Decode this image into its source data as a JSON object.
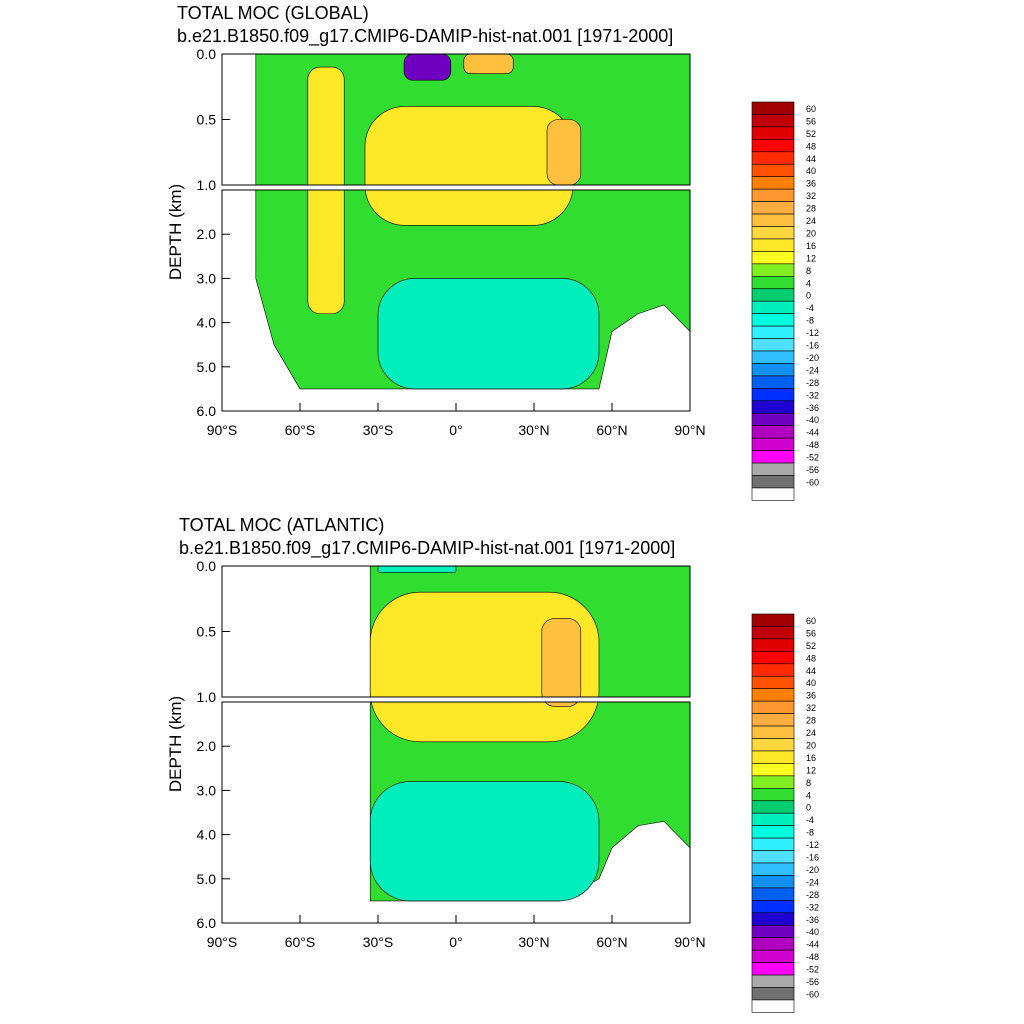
{
  "panels": [
    {
      "title": "TOTAL MOC (GLOBAL)",
      "subtitle": "b.e21.B1850.f09_g17.CMIP6-DAMIP-hist-nat.001 [1971-2000]"
    },
    {
      "title": "TOTAL MOC (ATLANTIC)",
      "subtitle": "b.e21.B1850.f09_g17.CMIP6-DAMIP-hist-nat.001 [1971-2000]"
    }
  ],
  "chart_data": [
    {
      "type": "heatmap",
      "title": "TOTAL MOC (GLOBAL)",
      "subtitle": "b.e21.B1850.f09_g17.CMIP6-DAMIP-hist-nat.001 [1971-2000]",
      "xlabel": "",
      "ylabel": "DEPTH (km)",
      "xlim": [
        -90,
        90
      ],
      "ylim_upper": [
        0.0,
        1.0
      ],
      "ylim_lower": [
        1.0,
        6.0
      ],
      "x_ticks": [
        "90°S",
        "60°S",
        "30°S",
        "0°",
        "30°N",
        "60°N",
        "90°N"
      ],
      "y_ticks_upper": [
        "0.0",
        "0.5",
        "1.0"
      ],
      "y_ticks_lower": [
        "2.0",
        "3.0",
        "4.0",
        "5.0",
        "6.0"
      ],
      "features": [
        {
          "lat": [
            -57,
            -43
          ],
          "depth": [
            0.1,
            3.8
          ],
          "value": 16
        },
        {
          "lat": [
            -20,
            -2
          ],
          "depth": [
            0.0,
            0.2
          ],
          "value": -40
        },
        {
          "lat": [
            3,
            22
          ],
          "depth": [
            0.0,
            0.15
          ],
          "value": 24
        },
        {
          "lat": [
            -35,
            45
          ],
          "depth": [
            0.4,
            1.8
          ],
          "value": 16
        },
        {
          "lat": [
            35,
            48
          ],
          "depth": [
            0.5,
            1.0
          ],
          "value": 24
        },
        {
          "lat": [
            -30,
            55
          ],
          "depth": [
            3.0,
            5.5
          ],
          "value": -4
        }
      ],
      "legend": "right"
    },
    {
      "type": "heatmap",
      "title": "TOTAL MOC (ATLANTIC)",
      "subtitle": "b.e21.B1850.f09_g17.CMIP6-DAMIP-hist-nat.001 [1971-2000]",
      "xlabel": "",
      "ylabel": "DEPTH (km)",
      "xlim": [
        -90,
        90
      ],
      "ylim_upper": [
        0.0,
        1.0
      ],
      "ylim_lower": [
        1.0,
        6.0
      ],
      "x_ticks": [
        "90°S",
        "60°S",
        "30°S",
        "0°",
        "30°N",
        "60°N",
        "90°N"
      ],
      "y_ticks_upper": [
        "0.0",
        "0.5",
        "1.0"
      ],
      "y_ticks_lower": [
        "2.0",
        "3.0",
        "4.0",
        "5.0",
        "6.0"
      ],
      "features": [
        {
          "lat": [
            -33,
            55
          ],
          "depth": [
            0.2,
            1.9
          ],
          "value": 16
        },
        {
          "lat": [
            33,
            48
          ],
          "depth": [
            0.4,
            1.1
          ],
          "value": 24
        },
        {
          "lat": [
            -30,
            0
          ],
          "depth": [
            0.0,
            0.05
          ],
          "value": -4
        },
        {
          "lat": [
            -33,
            55
          ],
          "depth": [
            2.8,
            5.5
          ],
          "value": -4
        }
      ],
      "legend": "right"
    }
  ],
  "colorbar": {
    "labels": [
      "60",
      "56",
      "52",
      "48",
      "44",
      "40",
      "36",
      "32",
      "28",
      "24",
      "20",
      "16",
      "12",
      "8",
      "4",
      "0",
      "-4",
      "-8",
      "-12",
      "-16",
      "-20",
      "-24",
      "-28",
      "-32",
      "-36",
      "-40",
      "-44",
      "-48",
      "-52",
      "-56",
      "-60"
    ],
    "colors": [
      "#a00000",
      "#c00000",
      "#e00000",
      "#ff0000",
      "#ff2a00",
      "#ff5200",
      "#ff8000",
      "#ff9830",
      "#ffad40",
      "#ffc040",
      "#ffd840",
      "#ffe828",
      "#ffff20",
      "#80ee20",
      "#30dd30",
      "#00cc70",
      "#00eebb",
      "#00ffdd",
      "#30f0ff",
      "#50e0ff",
      "#30c0ff",
      "#1090f0",
      "#0060f0",
      "#0030ff",
      "#2000d0",
      "#7000c0",
      "#b000c0",
      "#d000d0",
      "#ff00ff",
      "#aaaaaa",
      "#707070",
      "#ffffff"
    ]
  }
}
